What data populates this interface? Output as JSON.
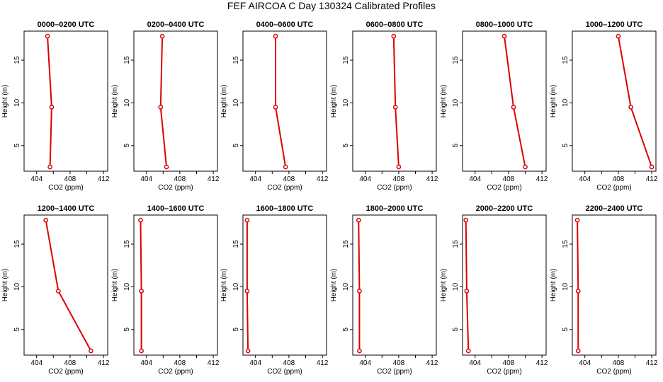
{
  "chart_data": {
    "type": "line",
    "title": "FEF AIRCOA C  Day 130324  Calibrated Profiles",
    "xlabel": "CO2 (ppm)",
    "ylabel": "Height (m)",
    "xlim": [
      402.5,
      412.5
    ],
    "ylim": [
      2,
      18.4
    ],
    "xticks": [
      404,
      408,
      412
    ],
    "yticks": [
      5,
      10,
      15
    ],
    "heights": [
      2.5,
      9.5,
      17.8
    ],
    "line_color": "#dd0000",
    "panels": [
      {
        "title": "0000–0200 UTC",
        "co2": [
          405.6,
          405.8,
          405.3
        ]
      },
      {
        "title": "0200–0400 UTC",
        "co2": [
          406.4,
          405.7,
          405.9
        ]
      },
      {
        "title": "0400–0600 UTC",
        "co2": [
          407.6,
          406.4,
          406.4
        ]
      },
      {
        "title": "0600–0800 UTC",
        "co2": [
          408.0,
          407.6,
          407.4
        ]
      },
      {
        "title": "0800–1000 UTC",
        "co2": [
          410.0,
          408.6,
          407.5
        ]
      },
      {
        "title": "1000–1200 UTC",
        "co2": [
          412.0,
          409.5,
          408.0
        ]
      },
      {
        "title": "1200–1400 UTC",
        "co2": [
          410.5,
          406.6,
          405.1
        ]
      },
      {
        "title": "1400–1600 UTC",
        "co2": [
          403.4,
          403.4,
          403.3
        ]
      },
      {
        "title": "1600–1800 UTC",
        "co2": [
          403.1,
          403.0,
          403.0
        ]
      },
      {
        "title": "1800–2000 UTC",
        "co2": [
          403.3,
          403.3,
          403.2
        ]
      },
      {
        "title": "2000–2200 UTC",
        "co2": [
          403.2,
          403.0,
          402.9
        ]
      },
      {
        "title": "2200–2400 UTC",
        "co2": [
          403.2,
          403.2,
          403.1
        ]
      }
    ]
  }
}
